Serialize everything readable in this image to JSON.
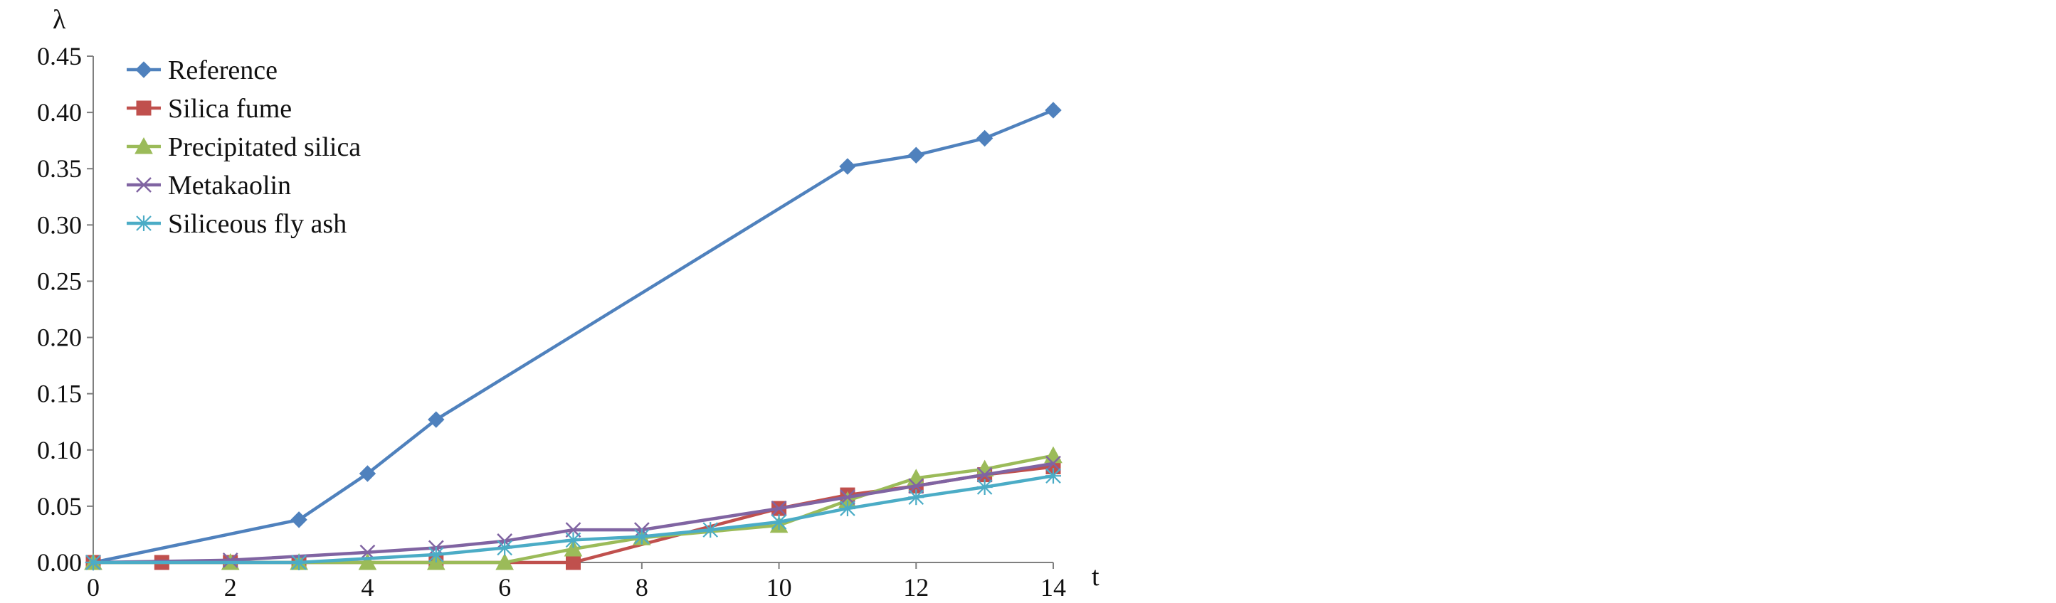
{
  "chart_data": {
    "type": "line",
    "title": "",
    "xlabel": "t",
    "ylabel": "λ",
    "xlim": [
      0,
      14
    ],
    "ylim": [
      0,
      0.45
    ],
    "x_ticks": [
      "0",
      "2",
      "4",
      "6",
      "8",
      "10",
      "12",
      "14"
    ],
    "y_ticks": [
      "0.00",
      "0.05",
      "0.10",
      "0.15",
      "0.20",
      "0.25",
      "0.30",
      "0.35",
      "0.40",
      "0.45"
    ],
    "grid": false,
    "legend_position": "top-left",
    "series": [
      {
        "name": "Reference",
        "color": "#4F81BD",
        "marker": "diamond",
        "points": [
          {
            "x": 0,
            "y": 0.0
          },
          {
            "x": 3,
            "y": 0.038
          },
          {
            "x": 4,
            "y": 0.079
          },
          {
            "x": 5,
            "y": 0.127
          },
          {
            "x": 11,
            "y": 0.352
          },
          {
            "x": 12,
            "y": 0.362
          },
          {
            "x": 13,
            "y": 0.377
          },
          {
            "x": 14,
            "y": 0.402
          }
        ]
      },
      {
        "name": "Silica fume",
        "color": "#C0504D",
        "marker": "square",
        "points": [
          {
            "x": 0,
            "y": 0.0
          },
          {
            "x": 1,
            "y": 0.0
          },
          {
            "x": 2,
            "y": 0.0
          },
          {
            "x": 3,
            "y": 0.0
          },
          {
            "x": 5,
            "y": 0.0
          },
          {
            "x": 7,
            "y": 0.0
          },
          {
            "x": 10,
            "y": 0.048
          },
          {
            "x": 11,
            "y": 0.06
          },
          {
            "x": 12,
            "y": 0.068
          },
          {
            "x": 13,
            "y": 0.078
          },
          {
            "x": 14,
            "y": 0.085
          }
        ]
      },
      {
        "name": "Precipitated silica",
        "color": "#9BBB59",
        "marker": "triangle",
        "points": [
          {
            "x": 0,
            "y": 0.0
          },
          {
            "x": 2,
            "y": 0.0
          },
          {
            "x": 3,
            "y": 0.0
          },
          {
            "x": 4,
            "y": 0.0
          },
          {
            "x": 5,
            "y": 0.0
          },
          {
            "x": 6,
            "y": 0.0
          },
          {
            "x": 7,
            "y": 0.012
          },
          {
            "x": 8,
            "y": 0.022
          },
          {
            "x": 10,
            "y": 0.033
          },
          {
            "x": 11,
            "y": 0.055
          },
          {
            "x": 12,
            "y": 0.075
          },
          {
            "x": 13,
            "y": 0.083
          },
          {
            "x": 14,
            "y": 0.095
          }
        ]
      },
      {
        "name": "Metakaolin",
        "color": "#8064A2",
        "marker": "x",
        "points": [
          {
            "x": 0,
            "y": 0.0
          },
          {
            "x": 2,
            "y": 0.002
          },
          {
            "x": 4,
            "y": 0.009
          },
          {
            "x": 5,
            "y": 0.013
          },
          {
            "x": 6,
            "y": 0.019
          },
          {
            "x": 7,
            "y": 0.029
          },
          {
            "x": 8,
            "y": 0.029
          },
          {
            "x": 10,
            "y": 0.048
          },
          {
            "x": 11,
            "y": 0.058
          },
          {
            "x": 12,
            "y": 0.068
          },
          {
            "x": 13,
            "y": 0.078
          },
          {
            "x": 14,
            "y": 0.088
          }
        ]
      },
      {
        "name": "Siliceous fly ash",
        "color": "#4BACC6",
        "marker": "asterisk",
        "points": [
          {
            "x": 0,
            "y": 0.0
          },
          {
            "x": 3,
            "y": 0.0
          },
          {
            "x": 5,
            "y": 0.007
          },
          {
            "x": 6,
            "y": 0.013
          },
          {
            "x": 7,
            "y": 0.02
          },
          {
            "x": 8,
            "y": 0.023
          },
          {
            "x": 9,
            "y": 0.029
          },
          {
            "x": 10,
            "y": 0.036
          },
          {
            "x": 11,
            "y": 0.048
          },
          {
            "x": 12,
            "y": 0.058
          },
          {
            "x": 13,
            "y": 0.067
          },
          {
            "x": 14,
            "y": 0.077
          }
        ]
      }
    ]
  }
}
